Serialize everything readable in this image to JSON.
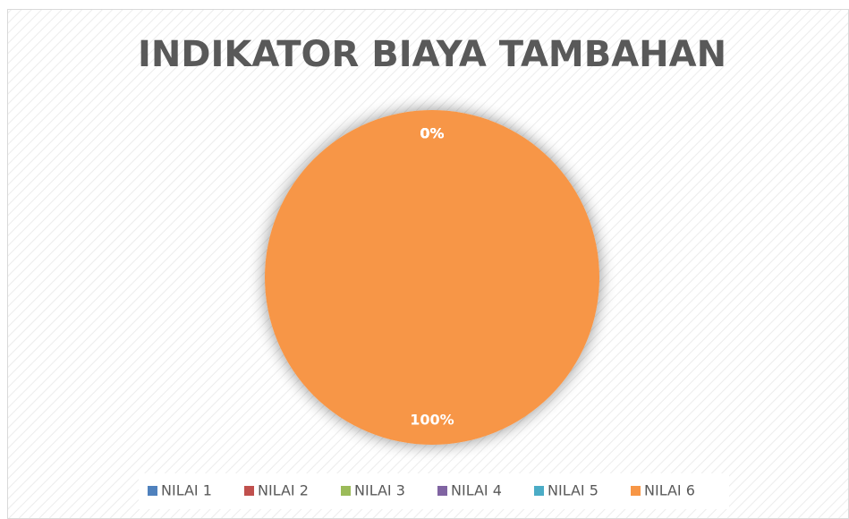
{
  "chart_data": {
    "type": "pie",
    "title": "INDIKATOR BIAYA TAMBAHAN",
    "categories": [
      "NILAI 1",
      "NILAI 2",
      "NILAI 3",
      "NILAI 4",
      "NILAI 5",
      "NILAI 6"
    ],
    "values": [
      0,
      0,
      0,
      0,
      0,
      100
    ],
    "value_labels": [
      "0%",
      "0%",
      "0%",
      "0%",
      "0%",
      "100%"
    ],
    "colors": [
      "#4f81bd",
      "#c0504d",
      "#9bbb59",
      "#8064a2",
      "#4bacc6",
      "#f79646"
    ],
    "legend": "bottom"
  }
}
